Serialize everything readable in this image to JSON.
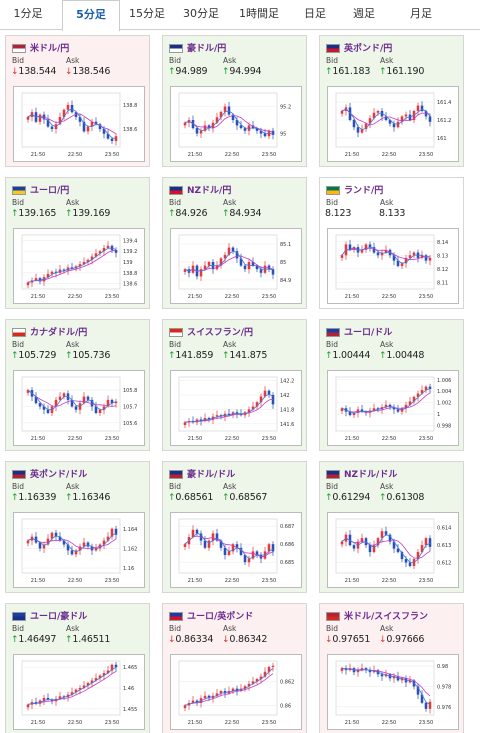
{
  "tabs": [
    {
      "label": "1分足",
      "active": false
    },
    {
      "label": "5分足",
      "active": true
    },
    {
      "label": "15分足",
      "active": false
    },
    {
      "label": "30分足",
      "active": false
    },
    {
      "label": "1時間足",
      "active": false
    },
    {
      "label": "日足",
      "active": false
    },
    {
      "label": "週足",
      "active": false
    },
    {
      "label": "月足",
      "active": false
    }
  ],
  "labels": {
    "bid": "Bid",
    "ask": "Ask"
  },
  "time_labels": [
    "21:50",
    "22:50",
    "23:50"
  ],
  "colors": {
    "bull": "#e8393a",
    "bear": "#2a4fb8",
    "ma1": "#c93ac9",
    "ma2": "#3b7bd6",
    "up": "#1a9b2a",
    "down": "#e03030"
  },
  "cards": [
    {
      "pair": "米ドル/円",
      "flag": "us",
      "dir": "down",
      "bid": "138.544",
      "ask": "138.546",
      "chart_data": {
        "type": "candlestick",
        "y_ticks": [
          "138.6",
          "138.8"
        ],
        "ylim": [
          138.45,
          138.9
        ],
        "closes": [
          138.7,
          138.74,
          138.66,
          138.72,
          138.68,
          138.62,
          138.6,
          138.64,
          138.7,
          138.76,
          138.8,
          138.74,
          138.7,
          138.66,
          138.58,
          138.62,
          138.66,
          138.64,
          138.6,
          138.56,
          138.52,
          138.5,
          138.54
        ]
      }
    },
    {
      "pair": "豪ドル/円",
      "flag": "au",
      "dir": "up",
      "bid": "94.989",
      "ask": "94.994",
      "chart_data": {
        "type": "candlestick",
        "y_ticks": [
          "95",
          "95.2"
        ],
        "ylim": [
          94.9,
          95.3
        ],
        "closes": [
          95.08,
          95.1,
          95.04,
          95.0,
          95.02,
          95.06,
          95.04,
          95.08,
          95.12,
          95.16,
          95.2,
          95.14,
          95.1,
          95.06,
          95.04,
          95.02,
          95.06,
          95.04,
          95.02,
          95.0,
          94.98,
          95.02,
          94.99
        ]
      }
    },
    {
      "pair": "英ポンド/円",
      "flag": "gb",
      "dir": "up",
      "bid": "161.183",
      "ask": "161.190",
      "chart_data": {
        "type": "candlestick",
        "y_ticks": [
          "161",
          "161.2",
          "161.4"
        ],
        "ylim": [
          160.9,
          161.5
        ],
        "closes": [
          161.3,
          161.34,
          161.2,
          161.12,
          161.06,
          161.1,
          161.16,
          161.22,
          161.28,
          161.3,
          161.24,
          161.2,
          161.16,
          161.12,
          161.18,
          161.24,
          161.26,
          161.2,
          161.3,
          161.36,
          161.3,
          161.24,
          161.18
        ]
      }
    },
    {
      "pair": "ユーロ/円",
      "flag": "eu",
      "dir": "up",
      "bid": "139.165",
      "ask": "139.169",
      "chart_data": {
        "type": "candlestick",
        "y_ticks": [
          "138.6",
          "138.8",
          "139",
          "139.2",
          "139.4"
        ],
        "ylim": [
          138.5,
          139.5
        ],
        "closes": [
          138.62,
          138.66,
          138.7,
          138.64,
          138.72,
          138.78,
          138.82,
          138.8,
          138.86,
          138.84,
          138.9,
          138.88,
          138.92,
          138.96,
          139.0,
          139.04,
          139.1,
          139.16,
          139.2,
          139.26,
          139.3,
          139.22,
          139.17
        ]
      }
    },
    {
      "pair": "NZドル/円",
      "flag": "nz",
      "dir": "up",
      "bid": "84.926",
      "ask": "84.934",
      "chart_data": {
        "type": "candlestick",
        "y_ticks": [
          "84.9",
          "85",
          "85.1"
        ],
        "ylim": [
          84.85,
          85.15
        ],
        "closes": [
          84.96,
          84.94,
          84.98,
          84.92,
          84.96,
          84.98,
          85.0,
          84.96,
          84.98,
          85.02,
          85.04,
          85.08,
          85.06,
          85.02,
          84.98,
          84.96,
          85.0,
          84.98,
          84.96,
          84.94,
          84.98,
          84.96,
          84.93
        ]
      }
    },
    {
      "pair": "ランド/円",
      "flag": "za",
      "dir": "none",
      "bid": "8.123",
      "ask": "8.133",
      "chart_data": {
        "type": "candlestick",
        "y_ticks": [
          "8.11",
          "8.12",
          "8.13",
          "8.14"
        ],
        "ylim": [
          8.105,
          8.145
        ],
        "closes": [
          8.13,
          8.138,
          8.134,
          8.136,
          8.132,
          8.134,
          8.138,
          8.136,
          8.132,
          8.13,
          8.132,
          8.134,
          8.13,
          8.126,
          8.122,
          8.124,
          8.128,
          8.13,
          8.132,
          8.128,
          8.13,
          8.126,
          8.128
        ]
      }
    },
    {
      "pair": "カナダドル/円",
      "flag": "ca",
      "dir": "up",
      "bid": "105.729",
      "ask": "105.736",
      "chart_data": {
        "type": "candlestick",
        "y_ticks": [
          "105.6",
          "105.7",
          "105.8"
        ],
        "ylim": [
          105.55,
          105.88
        ],
        "closes": [
          105.8,
          105.76,
          105.72,
          105.7,
          105.68,
          105.66,
          105.7,
          105.74,
          105.76,
          105.78,
          105.74,
          105.7,
          105.68,
          105.72,
          105.76,
          105.74,
          105.7,
          105.66,
          105.68,
          105.7,
          105.74,
          105.72,
          105.73
        ]
      }
    },
    {
      "pair": "スイスフラン/円",
      "flag": "ch",
      "dir": "up",
      "bid": "141.859",
      "ask": "141.875",
      "chart_data": {
        "type": "candlestick",
        "y_ticks": [
          "141.6",
          "141.8",
          "142",
          "142.2"
        ],
        "ylim": [
          141.5,
          142.25
        ],
        "closes": [
          141.62,
          141.64,
          141.62,
          141.66,
          141.64,
          141.68,
          141.66,
          141.7,
          141.72,
          141.7,
          141.74,
          141.72,
          141.76,
          141.74,
          141.72,
          141.76,
          141.8,
          141.84,
          141.9,
          141.98,
          142.06,
          142.0,
          141.87
        ]
      }
    },
    {
      "pair": "ユーロ/ドル",
      "flag": "eu-us",
      "dir": "up",
      "bid": "1.00444",
      "ask": "1.00448",
      "chart_data": {
        "type": "candlestick",
        "y_ticks": [
          "0.998",
          "1",
          "1.002",
          "1.004",
          "1.006"
        ],
        "ylim": [
          0.997,
          1.0065
        ],
        "closes": [
          1.001,
          1.0004,
          0.9998,
          1.0002,
          1.0008,
          1.0004,
          1.0002,
          1.0006,
          1.001,
          1.0008,
          1.0012,
          1.0016,
          1.0012,
          1.0008,
          1.0004,
          1.001,
          1.0016,
          1.0022,
          1.003,
          1.0036,
          1.0042,
          1.0048,
          1.0044
        ]
      }
    },
    {
      "pair": "英ポンド/ドル",
      "flag": "gb-us",
      "dir": "up",
      "bid": "1.16339",
      "ask": "1.16346",
      "chart_data": {
        "type": "candlestick",
        "y_ticks": [
          "1.16",
          "1.162",
          "1.164"
        ],
        "ylim": [
          1.1595,
          1.165
        ],
        "closes": [
          1.1628,
          1.1632,
          1.1626,
          1.162,
          1.1624,
          1.163,
          1.1636,
          1.1632,
          1.1628,
          1.1624,
          1.1618,
          1.1614,
          1.1618,
          1.1622,
          1.1626,
          1.1622,
          1.1618,
          1.162,
          1.1624,
          1.1628,
          1.1632,
          1.164,
          1.1634
        ]
      }
    },
    {
      "pair": "豪ドル/ドル",
      "flag": "au-us",
      "dir": "up",
      "bid": "0.68561",
      "ask": "0.68567",
      "chart_data": {
        "type": "candlestick",
        "y_ticks": [
          "0.685",
          "0.686",
          "0.687"
        ],
        "ylim": [
          0.6844,
          0.6874
        ],
        "closes": [
          0.686,
          0.6864,
          0.6868,
          0.6866,
          0.6862,
          0.6858,
          0.6862,
          0.6866,
          0.6862,
          0.6858,
          0.6854,
          0.6856,
          0.686,
          0.6858,
          0.6854,
          0.685,
          0.6852,
          0.6856,
          0.6854,
          0.6852,
          0.6856,
          0.686,
          0.6856
        ]
      }
    },
    {
      "pair": "NZドル/ドル",
      "flag": "nz-us",
      "dir": "up",
      "bid": "0.61294",
      "ask": "0.61308",
      "chart_data": {
        "type": "candlestick",
        "y_ticks": [
          "0.612",
          "0.613",
          "0.614"
        ],
        "ylim": [
          0.6114,
          0.6145
        ],
        "closes": [
          0.6132,
          0.6136,
          0.613,
          0.6128,
          0.6132,
          0.6134,
          0.613,
          0.6126,
          0.613,
          0.6134,
          0.6138,
          0.6136,
          0.6132,
          0.6128,
          0.6126,
          0.6122,
          0.612,
          0.6118,
          0.6122,
          0.6126,
          0.613,
          0.6134,
          0.6129
        ]
      }
    },
    {
      "pair": "ユーロ/豪ドル",
      "flag": "eu-au",
      "dir": "up",
      "bid": "1.46497",
      "ask": "1.46511",
      "chart_data": {
        "type": "candlestick",
        "y_ticks": [
          "1.455",
          "1.46",
          "1.465"
        ],
        "ylim": [
          1.4535,
          1.4665
        ],
        "closes": [
          1.456,
          1.4566,
          1.4562,
          1.457,
          1.4576,
          1.4572,
          1.4568,
          1.4574,
          1.458,
          1.4578,
          1.4584,
          1.459,
          1.4596,
          1.46,
          1.4606,
          1.4612,
          1.4618,
          1.4624,
          1.463,
          1.4636,
          1.4642,
          1.4656,
          1.465
        ]
      }
    },
    {
      "pair": "ユーロ/英ポンド",
      "flag": "eu-gb",
      "dir": "down",
      "bid": "0.86334",
      "ask": "0.86342",
      "chart_data": {
        "type": "candlestick",
        "y_ticks": [
          "0.862",
          "0.86"
        ],
        "ylim": [
          0.8592,
          0.8637
        ],
        "closes": [
          0.86,
          0.8602,
          0.8604,
          0.8602,
          0.8606,
          0.8608,
          0.8606,
          0.8608,
          0.861,
          0.8612,
          0.861,
          0.8612,
          0.8614,
          0.8612,
          0.8614,
          0.8616,
          0.8618,
          0.862,
          0.8622,
          0.8624,
          0.8628,
          0.8632,
          0.8633
        ]
      }
    },
    {
      "pair": "米ドル/スイスフラン",
      "flag": "us-ch",
      "dir": "down",
      "bid": "0.97651",
      "ask": "0.97666",
      "chart_data": {
        "type": "candlestick",
        "y_ticks": [
          "0.976",
          "0.978",
          "0.98"
        ],
        "ylim": [
          0.9752,
          0.9805
        ],
        "closes": [
          0.9798,
          0.9796,
          0.9798,
          0.9794,
          0.9796,
          0.9798,
          0.9796,
          0.9794,
          0.9796,
          0.9792,
          0.979,
          0.9792,
          0.9788,
          0.979,
          0.9786,
          0.9788,
          0.9784,
          0.9786,
          0.978,
          0.9772,
          0.9764,
          0.9758,
          0.9765
        ]
      }
    }
  ]
}
